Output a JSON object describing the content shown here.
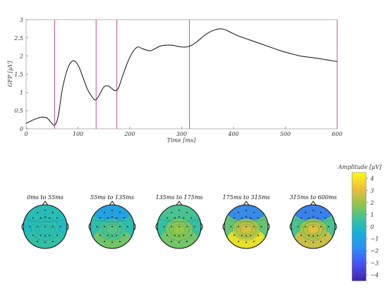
{
  "chart_data": [
    {
      "type": "line",
      "xlabel": "Time [ms]",
      "ylabel": "GFP [µV]",
      "xlim": [
        0,
        600
      ],
      "ylim": [
        0,
        3
      ],
      "xticks": [
        "0",
        "100",
        "200",
        "300",
        "400",
        "500",
        "600"
      ],
      "yticks": [
        "0",
        "0.5",
        "1",
        "1.5",
        "2",
        "2.5",
        "3"
      ],
      "grid": false,
      "line_color": "#222222",
      "marker_color": "#c0509a",
      "markers_ms": [
        55,
        135,
        175,
        315,
        600
      ],
      "series": [
        {
          "x": [
            0,
            10,
            20,
            30,
            40,
            48,
            55,
            62,
            70,
            80,
            88,
            95,
            102,
            110,
            118,
            126,
            132,
            136,
            142,
            150,
            158,
            166,
            172,
            178,
            186,
            195,
            205,
            215,
            225,
            240,
            260,
            280,
            300,
            315,
            330,
            345,
            360,
            375,
            385,
            395,
            410,
            430,
            450,
            470,
            490,
            510,
            530,
            550,
            570,
            590,
            600
          ],
          "y": [
            0.15,
            0.22,
            0.28,
            0.32,
            0.3,
            0.18,
            0.1,
            0.35,
            1.1,
            1.65,
            1.85,
            1.85,
            1.7,
            1.4,
            1.1,
            0.9,
            0.8,
            0.82,
            0.95,
            1.15,
            1.18,
            1.1,
            1.05,
            1.12,
            1.45,
            1.8,
            2.1,
            2.25,
            2.2,
            2.15,
            2.28,
            2.3,
            2.25,
            2.27,
            2.4,
            2.58,
            2.7,
            2.75,
            2.72,
            2.65,
            2.55,
            2.45,
            2.35,
            2.25,
            2.15,
            2.07,
            2.0,
            1.96,
            1.92,
            1.87,
            1.85
          ]
        }
      ]
    },
    {
      "type": "heatmap",
      "subtype": "topographic-scalp-maps",
      "titles": [
        "0ms to 55ms",
        "55ms to 135ms",
        "135ms to 175ms",
        "175ms to 315ms",
        "315ms to 600ms"
      ],
      "colorbar": {
        "label": "Amplitude [µV]",
        "range": [
          -4.5,
          4.5
        ],
        "ticks": [
          "4",
          "3",
          "2",
          "1",
          "0",
          "−1",
          "−2",
          "−3",
          "−4"
        ],
        "colormap": "parula"
      },
      "maps": [
        {
          "center": 0.3,
          "frontal": 0.2,
          "occipital": 0.5,
          "temporal": 0.0
        },
        {
          "center": 1.2,
          "frontal": -1.2,
          "occipital": 1.5,
          "temporal": 0.3
        },
        {
          "center": 2.2,
          "frontal": 0.8,
          "occipital": 1.5,
          "temporal": 0.5
        },
        {
          "center": 3.2,
          "frontal": -2.0,
          "occipital": 4.0,
          "temporal": 1.2
        },
        {
          "center": 3.6,
          "frontal": -2.2,
          "occipital": 2.8,
          "temporal": 0.8
        }
      ]
    }
  ]
}
